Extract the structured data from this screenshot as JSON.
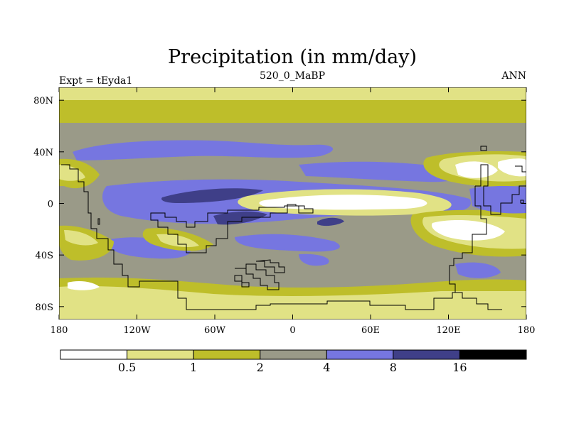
{
  "title": "Precipitation (in mm/day)",
  "subtitle_left": "Expt = tEyda1",
  "subtitle_center": "520_0_MaBP",
  "subtitle_right": "ANN",
  "map": {
    "lon_range": [
      -180,
      180
    ],
    "lat_range": [
      -90,
      90
    ],
    "lon_ticks": [
      {
        "value": -180,
        "label": "180"
      },
      {
        "value": -120,
        "label": "120W"
      },
      {
        "value": -60,
        "label": "60W"
      },
      {
        "value": 0,
        "label": "0"
      },
      {
        "value": 60,
        "label": "60E"
      },
      {
        "value": 120,
        "label": "120E"
      },
      {
        "value": 180,
        "label": "180"
      }
    ],
    "lat_ticks": [
      {
        "value": 80,
        "label": "80N"
      },
      {
        "value": 40,
        "label": "40N"
      },
      {
        "value": 0,
        "label": "0"
      },
      {
        "value": -40,
        "label": "40S"
      },
      {
        "value": -80,
        "label": "80S"
      }
    ]
  },
  "colorbar": {
    "levels": [
      "0.5",
      "1",
      "2",
      "4",
      "8",
      "16"
    ],
    "colors": [
      "#ffffff",
      "#e1e285",
      "#bebe2a",
      "#9a9a88",
      "#7676e0",
      "#3f3f88",
      "#000000"
    ]
  }
}
